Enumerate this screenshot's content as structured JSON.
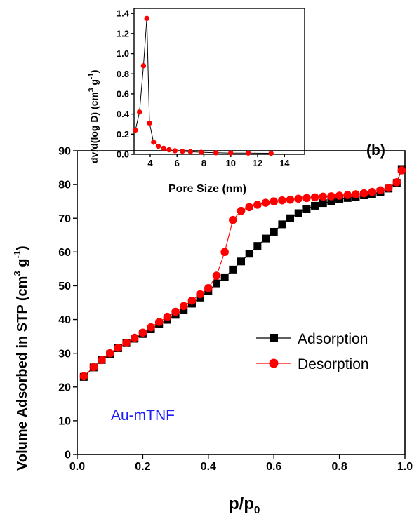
{
  "chart_data": [
    {
      "type": "line",
      "panel_label": "(b)",
      "annotation": "Au-mTNF",
      "annotation_color": "#1a1aff",
      "xlabel_main": "p/p",
      "xlabel_sub": "0",
      "ylabel": "Volume Adsorbed in STP (cm",
      "ylabel_sup1": "3",
      "ylabel_mid": " g",
      "ylabel_sup2": "-1",
      "ylabel_end": ")",
      "xlim": [
        0.0,
        1.0
      ],
      "ylim": [
        0,
        90
      ],
      "x_ticks": [
        "0.0",
        "0.2",
        "0.4",
        "0.6",
        "0.8",
        "1.0"
      ],
      "y_ticks": [
        "0",
        "10",
        "20",
        "30",
        "40",
        "50",
        "60",
        "70",
        "80",
        "90"
      ],
      "x_tick_values": [
        0.0,
        0.2,
        0.4,
        0.6,
        0.8,
        1.0
      ],
      "y_tick_values": [
        0,
        10,
        20,
        30,
        40,
        50,
        60,
        70,
        80,
        90
      ],
      "legend_position": "right",
      "series": [
        {
          "name": "Adsorption",
          "color": "#000000",
          "marker": "square",
          "x": [
            0.02,
            0.05,
            0.075,
            0.1,
            0.125,
            0.15,
            0.175,
            0.2,
            0.225,
            0.25,
            0.275,
            0.3,
            0.325,
            0.35,
            0.375,
            0.4,
            0.425,
            0.45,
            0.475,
            0.5,
            0.525,
            0.55,
            0.575,
            0.6,
            0.625,
            0.65,
            0.675,
            0.7,
            0.725,
            0.75,
            0.775,
            0.8,
            0.825,
            0.85,
            0.875,
            0.9,
            0.925,
            0.95,
            0.975,
            0.99
          ],
          "y": [
            23.0,
            25.8,
            28.0,
            29.7,
            31.5,
            33.0,
            34.3,
            35.7,
            37.1,
            38.6,
            39.9,
            41.4,
            42.9,
            44.7,
            46.5,
            48.5,
            50.7,
            52.5,
            54.8,
            57.2,
            59.5,
            61.8,
            64.0,
            66.0,
            68.2,
            70.0,
            71.5,
            72.8,
            73.7,
            74.5,
            75.0,
            75.6,
            76.0,
            76.3,
            76.8,
            77.2,
            77.8,
            78.8,
            80.5,
            84.6
          ]
        },
        {
          "name": "Desorption",
          "color": "#ff0000",
          "marker": "circle",
          "x": [
            0.99,
            0.975,
            0.95,
            0.925,
            0.9,
            0.875,
            0.85,
            0.825,
            0.8,
            0.775,
            0.75,
            0.725,
            0.7,
            0.675,
            0.65,
            0.625,
            0.6,
            0.575,
            0.55,
            0.525,
            0.5,
            0.475,
            0.45,
            0.425,
            0.4,
            0.375,
            0.35,
            0.325,
            0.3,
            0.275,
            0.25,
            0.225,
            0.2,
            0.175,
            0.15,
            0.125,
            0.1,
            0.075,
            0.05,
            0.02
          ],
          "y": [
            84.2,
            80.7,
            79.0,
            78.3,
            77.8,
            77.4,
            77.1,
            76.9,
            76.7,
            76.5,
            76.4,
            76.2,
            76.0,
            75.8,
            75.5,
            75.3,
            75.0,
            74.6,
            74.0,
            73.3,
            72.2,
            69.5,
            60.0,
            53.0,
            49.3,
            47.5,
            45.6,
            44.0,
            42.3,
            40.8,
            39.3,
            37.7,
            36.1,
            34.6,
            33.1,
            31.6,
            30.0,
            28.0,
            25.9,
            23.2
          ]
        }
      ]
    },
    {
      "type": "line",
      "inset": true,
      "xlabel": "Pore Size (nm)",
      "ylabel": "dv/d(log D) (cm",
      "ylabel_sup1": "3",
      "ylabel_mid": " g",
      "ylabel_sup2": "-1",
      "ylabel_end": ")",
      "xlim": [
        2.8,
        15.5
      ],
      "ylim": [
        0.0,
        1.45
      ],
      "x_ticks": [
        "4",
        "6",
        "8",
        "10",
        "12",
        "14"
      ],
      "x_tick_values": [
        4,
        6,
        8,
        10,
        12,
        14
      ],
      "y_ticks": [
        "0.0",
        "0.2",
        "0.4",
        "0.6",
        "0.8",
        "1.0",
        "1.2",
        "1.4"
      ],
      "y_tick_values": [
        0.0,
        0.2,
        0.4,
        0.6,
        0.8,
        1.0,
        1.2,
        1.4
      ],
      "series": [
        {
          "color": "#ff0000",
          "line_color": "#000000",
          "marker": "circle",
          "x": [
            2.9,
            3.2,
            3.5,
            3.75,
            3.95,
            4.25,
            4.6,
            5.0,
            5.4,
            5.85,
            6.4,
            7.0,
            7.8,
            8.9,
            10.0,
            11.3,
            13.0
          ],
          "y": [
            0.24,
            0.42,
            0.88,
            1.35,
            0.31,
            0.12,
            0.08,
            0.06,
            0.045,
            0.035,
            0.03,
            0.025,
            0.02,
            0.015,
            0.012,
            0.012,
            0.01
          ]
        }
      ]
    }
  ]
}
